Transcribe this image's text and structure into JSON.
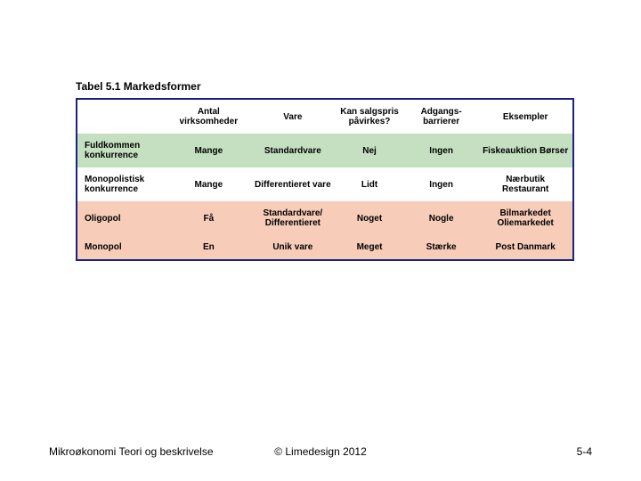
{
  "title": "Tabel 5.1 Markedsformer",
  "row_colors": {
    "header": "#ffffff",
    "r1": "#c5e0c0",
    "r2": "#ffffff",
    "r3": "#f7ccb8",
    "r4": "#f7ccb8"
  },
  "table_border_color": "#1a237e",
  "columns": [
    "",
    "Antal virksomheder",
    "Vare",
    "Kan salgspris påvirkes?",
    "Adgangs-barrierer",
    "Eksempler"
  ],
  "rows": [
    {
      "label": "Fuldkommen konkurrence",
      "cells": [
        "Mange",
        "Standardvare",
        "Nej",
        "Ingen",
        "Fiskeauktion Børser"
      ]
    },
    {
      "label": "Monopolistisk konkurrence",
      "cells": [
        "Mange",
        "Differentieret vare",
        "Lidt",
        "Ingen",
        "Nærbutik Restaurant"
      ]
    },
    {
      "label": "Oligopol",
      "cells": [
        "Få",
        "Standardvare/ Differentieret",
        "Noget",
        "Nogle",
        "Bilmarkedet Oliemarkedet"
      ]
    },
    {
      "label": "Monopol",
      "cells": [
        "En",
        "Unik vare",
        "Meget",
        "Stærke",
        "Post Danmark"
      ]
    }
  ],
  "footer": {
    "left": "Mikroøkonomi Teori og beskrivelse",
    "center": "© Limedesign 2012",
    "right": "5-4"
  },
  "fonts": {
    "title_size_pt": 12,
    "cell_size_pt": 10,
    "footer_size_pt": 12
  }
}
